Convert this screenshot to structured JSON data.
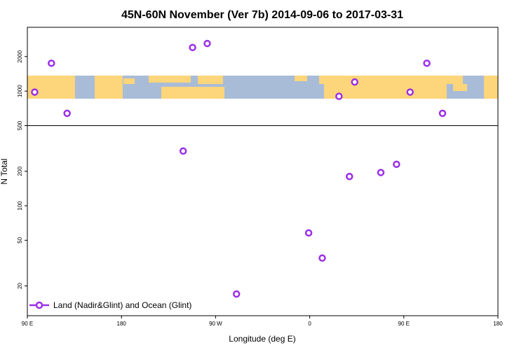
{
  "chart_data": {
    "type": "scatter",
    "title": "45N-60N November (Ver 7b)   2014-09-06 to 2017-03-31",
    "xlabel": "Longitude (deg E)",
    "ylabel": "N Total",
    "x_axis": {
      "ticks": [
        {
          "value": 90,
          "label": "90 E"
        },
        {
          "value": 180,
          "label": "180"
        },
        {
          "value": 270,
          "label": "90 W"
        },
        {
          "value": 360,
          "label": "0"
        },
        {
          "value": 450,
          "label": "90 E"
        },
        {
          "value": 540,
          "label": "180"
        }
      ],
      "xlim": [
        90,
        540
      ]
    },
    "y_axis": {
      "scale": "log",
      "ticks": [
        {
          "value": 20,
          "label": "20"
        },
        {
          "value": 50,
          "label": "50"
        },
        {
          "value": 100,
          "label": "100"
        },
        {
          "value": 200,
          "label": "200"
        },
        {
          "value": 500,
          "label": "500"
        },
        {
          "value": 1000,
          "label": "1000"
        },
        {
          "value": 2000,
          "label": "2000"
        }
      ],
      "ylim": [
        11,
        3600
      ],
      "reference_line": 500
    },
    "series": [
      {
        "name": "Land (Nadir&Glint) and Ocean (Glint)",
        "color": "#9b30e6",
        "marker": "open-circle",
        "points": [
          {
            "x": 97,
            "y": 980
          },
          {
            "x": 113,
            "y": 1750
          },
          {
            "x": 128,
            "y": 640
          },
          {
            "x": 239,
            "y": 300
          },
          {
            "x": 248,
            "y": 2400
          },
          {
            "x": 262,
            "y": 2600
          },
          {
            "x": 290,
            "y": 17
          },
          {
            "x": 359,
            "y": 58
          },
          {
            "x": 372,
            "y": 35
          },
          {
            "x": 388,
            "y": 900
          },
          {
            "x": 398,
            "y": 180
          },
          {
            "x": 403,
            "y": 1200
          },
          {
            "x": 428,
            "y": 195
          },
          {
            "x": 443,
            "y": 230
          },
          {
            "x": 456,
            "y": 980
          },
          {
            "x": 472,
            "y": 1750
          },
          {
            "x": 487,
            "y": 640
          }
        ]
      }
    ],
    "legend": {
      "position": "bottom-left"
    },
    "map_strip": {
      "land_color": "#fdd57a",
      "ocean_color": "#a8bcd8"
    },
    "grid": false
  }
}
